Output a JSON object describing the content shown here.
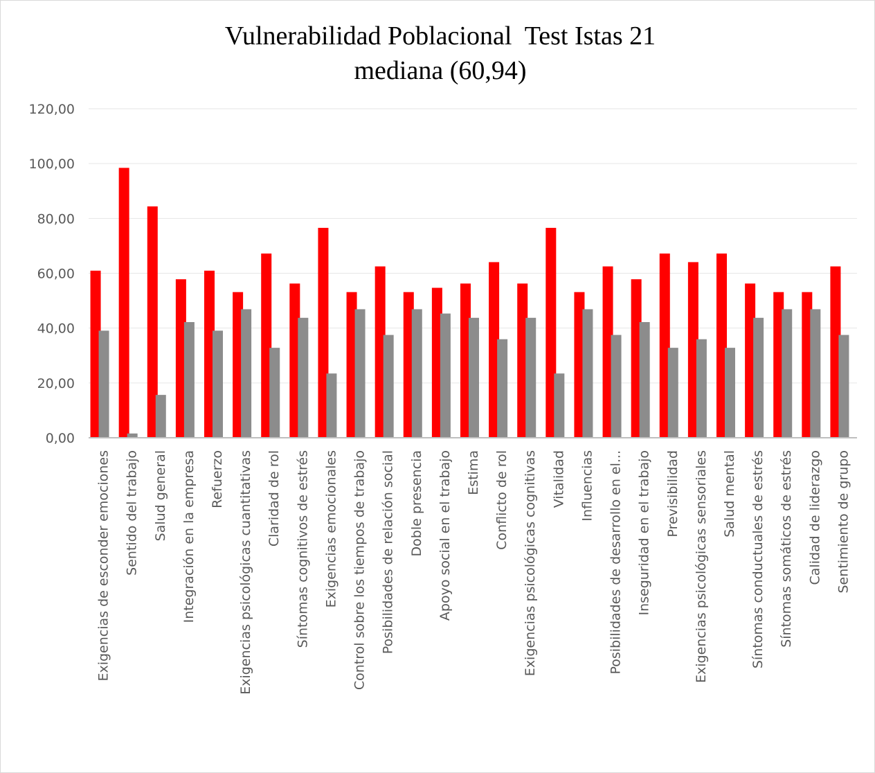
{
  "chart_data": {
    "type": "bar",
    "title": [
      "Vulnerabilidad Poblacional  Test Istas 21",
      "mediana (60,94)"
    ],
    "categories": [
      "Exigencias de esconder emociones",
      "Sentido del trabajo",
      "Salud general",
      "Integración en la empresa",
      "Refuerzo",
      "Exigencias psicológicas cuantitativas",
      "Claridad de rol",
      "Síntomas cognitivos de estrés",
      "Exigencias emocionales",
      "Control sobre los tiempos de trabajo",
      "Posibilidades de relación social",
      "Doble presencia",
      "Apoyo social en el trabajo",
      "Estima",
      "Conflicto de rol",
      "Exigencias psicológicas cognitivas",
      "Vitalidad",
      "Influencias",
      "Posibilidades de desarrollo en el...",
      "Inseguridad en el trabajo",
      "Previsibilidad",
      "Exigencias psicológicas sensoriales",
      "Salud mental",
      "Síntomas conductuales de estrés",
      "Síntomas somáticos de estrés",
      "Calidad de liderazgo",
      "Sentimiento de grupo"
    ],
    "series": [
      {
        "color": "#ff0000",
        "values": [
          60.94,
          98.44,
          84.38,
          57.81,
          60.94,
          53.13,
          67.19,
          56.25,
          76.56,
          53.13,
          62.5,
          53.13,
          54.69,
          56.25,
          64.06,
          56.25,
          76.56,
          53.13,
          62.5,
          57.81,
          67.19,
          64.06,
          67.19,
          56.25,
          53.13,
          53.13,
          62.5
        ]
      },
      {
        "color": "#8c8c8c",
        "values": [
          39.06,
          1.56,
          15.63,
          42.19,
          39.06,
          46.88,
          32.81,
          43.75,
          23.44,
          46.88,
          37.5,
          46.88,
          45.31,
          43.75,
          35.94,
          43.75,
          23.44,
          46.88,
          37.5,
          42.19,
          32.81,
          35.94,
          32.81,
          43.75,
          46.88,
          46.88,
          37.5
        ]
      }
    ],
    "ylim": [
      0,
      120
    ],
    "yticks": [
      {
        "value": 0,
        "label": "0,00"
      },
      {
        "value": 20,
        "label": "20,00"
      },
      {
        "value": 40,
        "label": "40,00"
      },
      {
        "value": 60,
        "label": "60,00"
      },
      {
        "value": 80,
        "label": "80,00"
      },
      {
        "value": 100,
        "label": "100,00"
      },
      {
        "value": 120,
        "label": "120,00"
      }
    ],
    "grid": true
  }
}
